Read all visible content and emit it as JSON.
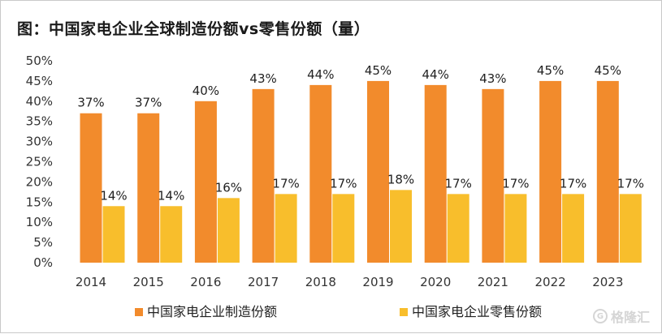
{
  "title": "图：中国家电企业全球制造份额vs零售份额（量）",
  "watermark": {
    "text": "格隆汇",
    "icon": "logo-icon"
  },
  "colors": {
    "manufacturing": "#F28B2C",
    "retail": "#F8BE2C"
  },
  "chart_data": {
    "type": "bar",
    "title": "图：中国家电企业全球制造份额vs零售份额（量）",
    "categories": [
      "2014",
      "2015",
      "2016",
      "2017",
      "2018",
      "2019",
      "2020",
      "2021",
      "2022",
      "2023"
    ],
    "series": [
      {
        "name": "中国家电企业制造份额",
        "values": [
          37,
          37,
          40,
          43,
          44,
          45,
          44,
          43,
          45,
          45
        ],
        "labels": [
          "37%",
          "37%",
          "40%",
          "43%",
          "44%",
          "45%",
          "44%",
          "43%",
          "45%",
          "45%"
        ]
      },
      {
        "name": "中国家电企业零售份额",
        "values": [
          14,
          14,
          16,
          17,
          17,
          18,
          17,
          17,
          17,
          17
        ],
        "labels": [
          "14%",
          "14%",
          "16%",
          "17%",
          "17%",
          "18%",
          "17%",
          "17%",
          "17%",
          "17%"
        ]
      }
    ],
    "yticks": [
      "0%",
      "5%",
      "10%",
      "15%",
      "20%",
      "25%",
      "30%",
      "35%",
      "40%",
      "45%",
      "50%"
    ],
    "ylim": [
      0,
      50
    ],
    "grid": false,
    "legend": "bottom"
  }
}
